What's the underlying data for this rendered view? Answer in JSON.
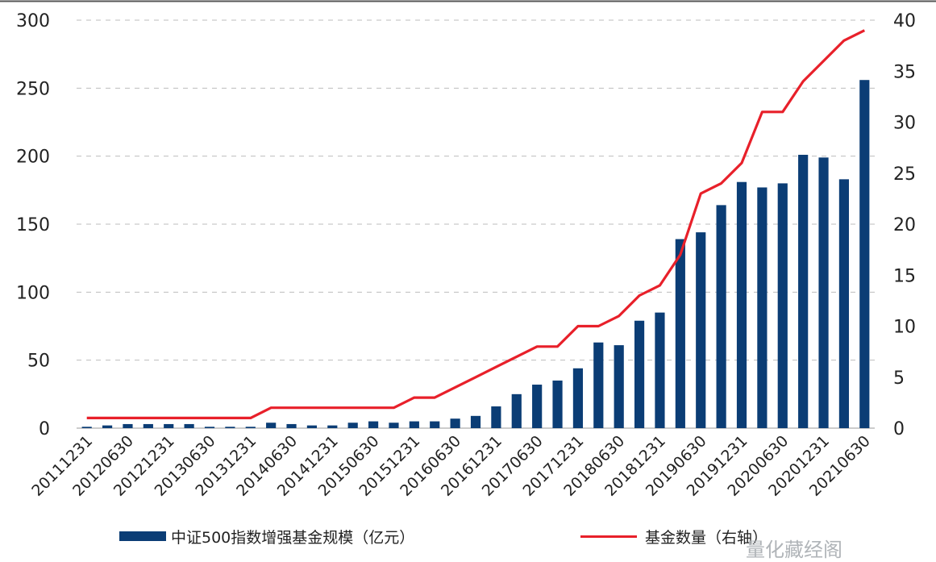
{
  "chart_data": {
    "type": "bar",
    "categories": [
      "20111231",
      "20120630",
      "20121231",
      "20130630",
      "20131231",
      "20140630",
      "20141231",
      "20150630",
      "20151231",
      "20160630",
      "20161231",
      "20170630",
      "20171231",
      "20180630",
      "20181231",
      "20190630",
      "20191231",
      "20200630",
      "20201231",
      "20210630"
    ],
    "x": [
      "20111231",
      "20120331",
      "20120630",
      "20120930",
      "20121231",
      "20130331",
      "20130630",
      "20130930",
      "20131231",
      "20140331",
      "20140630",
      "20140930",
      "20141231",
      "20150331",
      "20150630",
      "20150930",
      "20151231",
      "20160331",
      "20160630",
      "20160930",
      "20161231",
      "20170331",
      "20170630",
      "20170930",
      "20171231",
      "20180331",
      "20180630",
      "20180930",
      "20181231",
      "20190331",
      "20190630",
      "20190930",
      "20191231",
      "20200331",
      "20200630",
      "20200930",
      "20201231",
      "20210331",
      "20210630"
    ],
    "series": [
      {
        "name": "中证500指数增强基金规模（亿元）",
        "type": "bar",
        "axis": "left",
        "color": "#0b3d75",
        "values": [
          1,
          2,
          3,
          3,
          3,
          3,
          1,
          1,
          1,
          4,
          3,
          2,
          2,
          4,
          5,
          4,
          5,
          5,
          7,
          9,
          16,
          25,
          32,
          35,
          44,
          63,
          61,
          79,
          85,
          139,
          144,
          164,
          181,
          177,
          180,
          201,
          199,
          183,
          256
        ]
      },
      {
        "name": "基金数量（右轴）",
        "type": "line",
        "axis": "right",
        "color": "#e8202a",
        "values": [
          1,
          1,
          1,
          1,
          1,
          1,
          1,
          1,
          1,
          2,
          2,
          2,
          2,
          2,
          2,
          2,
          3,
          3,
          4,
          5,
          6,
          7,
          8,
          8,
          10,
          10,
          11,
          13,
          14,
          17,
          23,
          24,
          26,
          31,
          31,
          34,
          36,
          38,
          39
        ]
      }
    ],
    "ylim": [
      0,
      300
    ],
    "yticks": [
      "0",
      "50",
      "100",
      "150",
      "200",
      "250",
      "300"
    ],
    "y2lim": [
      0,
      40
    ],
    "y2ticks": [
      "0",
      "5",
      "10",
      "15",
      "20",
      "25",
      "30",
      "35",
      "40"
    ],
    "grid": true,
    "legend_position": "bottom"
  },
  "legend": {
    "bar_label": "中证500指数增强基金规模（亿元）",
    "line_label": "基金数量（右轴）"
  },
  "watermark": "量化藏经阁"
}
